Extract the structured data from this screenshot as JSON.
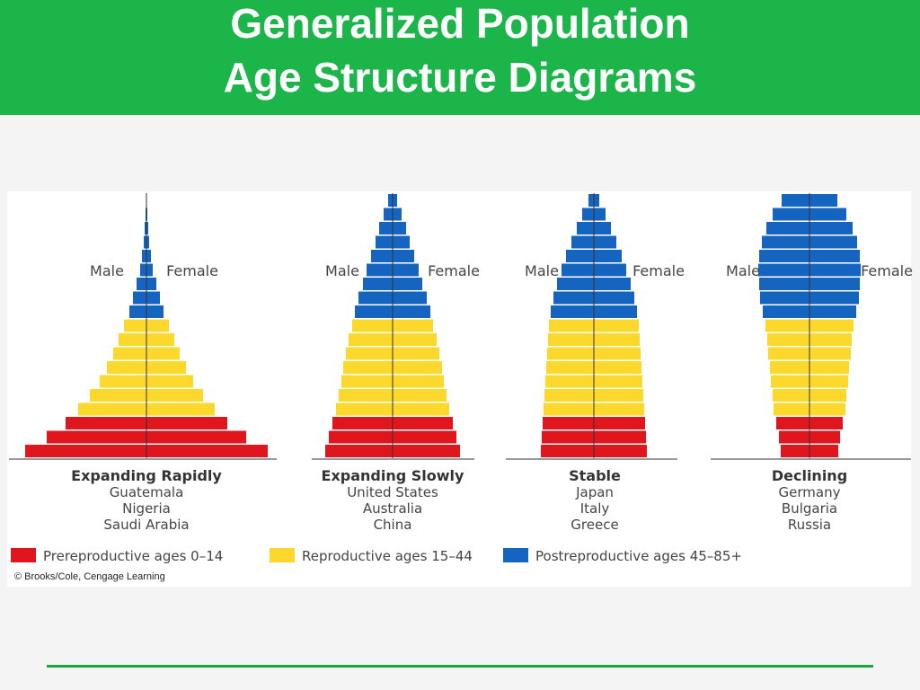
{
  "header": {
    "title_line1": "Generalized Population",
    "title_line2": "Age Structure Diagrams"
  },
  "colors": {
    "header_bg": "#1cb54a",
    "prereproductive": "#e0161f",
    "reproductive": "#fcd82c",
    "postreproductive": "#1565c0"
  },
  "labels": {
    "male": "Male",
    "female": "Female"
  },
  "chart_data": {
    "type": "bar",
    "bar_count_per_pyramid": 19,
    "order": "bottom-to-top",
    "groups": [
      "prereproductive",
      "prereproductive",
      "prereproductive",
      "reproductive",
      "reproductive",
      "reproductive",
      "reproductive",
      "reproductive",
      "reproductive",
      "reproductive",
      "postreproductive",
      "postreproductive",
      "postreproductive",
      "postreproductive",
      "postreproductive",
      "postreproductive",
      "postreproductive",
      "postreproductive",
      "postreproductive"
    ],
    "pyramids": [
      {
        "title": "Expanding Rapidly",
        "countries": [
          "Guatemala",
          "Nigeria",
          "Saudi Arabia"
        ],
        "half_widths": [
          135,
          111,
          90,
          76,
          63,
          52,
          44,
          37,
          31,
          25,
          19,
          15,
          11,
          7,
          5,
          3,
          2,
          1,
          0.5
        ]
      },
      {
        "title": "Expanding Slowly",
        "countries": [
          "United States",
          "Australia",
          "China"
        ],
        "half_widths": [
          75,
          71,
          67,
          63,
          60,
          57,
          55,
          52,
          49,
          45,
          42,
          38,
          33,
          29,
          24,
          19,
          15,
          10,
          5
        ]
      },
      {
        "title": "Stable",
        "countries": [
          "Japan",
          "Italy",
          "Greece"
        ],
        "half_widths": [
          59,
          58,
          57,
          56,
          55,
          54,
          53,
          52,
          51,
          50,
          48,
          45,
          41,
          36,
          31,
          25,
          19,
          13,
          6
        ]
      },
      {
        "title": "Declining",
        "countries": [
          "Germany",
          "Bulgaria",
          "Russia"
        ],
        "half_widths": [
          32,
          34,
          37,
          40,
          41,
          43,
          44,
          46,
          47,
          49,
          52,
          55,
          56,
          57,
          56,
          53,
          48,
          41,
          31
        ]
      }
    ]
  },
  "legend": [
    {
      "label": "Prereproductive ages 0–14",
      "color": "#e0161f"
    },
    {
      "label": "Reproductive ages 15–44",
      "color": "#fcd82c"
    },
    {
      "label": "Postreproductive ages 45–85+",
      "color": "#1565c0"
    }
  ],
  "copyright": "© Brooks/Cole, Cengage Learning"
}
